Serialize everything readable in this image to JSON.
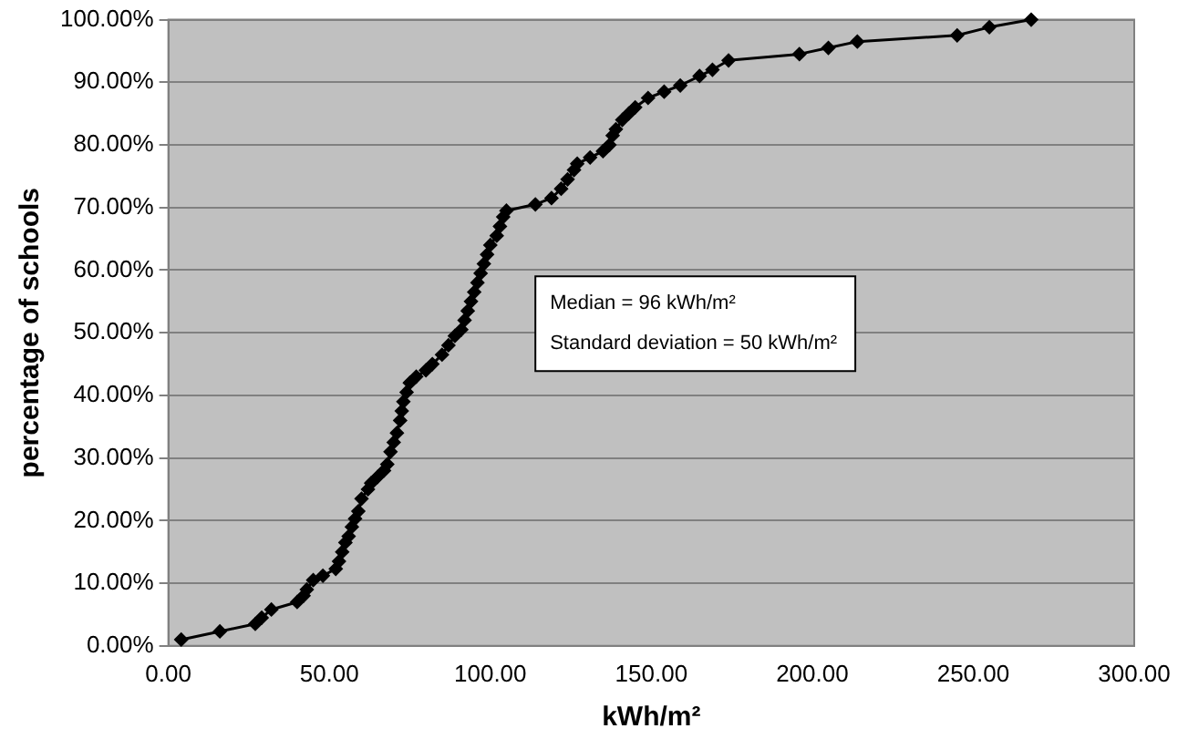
{
  "chart_data": {
    "type": "line",
    "xlabel": "kWh/m²",
    "ylabel": "percentage of schools",
    "x": [
      4,
      16,
      27,
      29,
      32,
      40,
      42,
      43,
      45,
      48,
      52,
      53,
      54,
      55,
      56,
      57,
      58,
      59,
      60,
      62,
      63,
      65,
      67,
      68,
      69,
      70,
      71,
      72,
      72.5,
      73,
      74,
      75,
      77,
      80,
      82,
      85,
      87,
      89,
      91,
      92,
      93,
      94,
      95,
      96,
      97,
      98,
      99,
      100,
      102,
      103,
      104,
      105,
      114,
      119,
      122,
      124,
      126,
      127,
      131,
      135,
      137,
      138,
      139,
      141,
      143,
      145,
      149,
      154,
      159,
      165,
      169,
      174,
      196,
      205,
      214,
      245,
      255,
      268
    ],
    "series": [
      {
        "color": "#000000",
        "values": [
          1,
          2.3,
          3.5,
          4.5,
          5.8,
          7,
          8,
          9,
          10.5,
          11.2,
          12.3,
          13.5,
          15,
          16.5,
          17.5,
          19,
          20.3,
          21.5,
          23.5,
          25,
          26,
          27,
          28,
          29,
          31,
          32.5,
          34,
          36,
          37.5,
          39,
          40.5,
          42,
          43,
          44,
          45,
          46.5,
          48,
          49.5,
          50.5,
          52,
          53.5,
          55,
          56.5,
          58,
          59.5,
          61,
          62.5,
          64,
          65.5,
          67,
          68.5,
          69.5,
          70.5,
          71.5,
          73,
          74.5,
          76,
          77,
          78,
          79,
          80,
          81.5,
          82.5,
          84,
          85,
          86,
          87.5,
          88.5,
          89.5,
          91,
          92,
          93.5,
          94.5,
          95.5,
          96.5,
          97.5,
          98.8,
          100
        ]
      }
    ],
    "xlim": [
      0,
      300
    ],
    "xticks": [
      {
        "value": 0,
        "label": "0.00"
      },
      {
        "value": 50,
        "label": "50.00"
      },
      {
        "value": 100,
        "label": "100.00"
      },
      {
        "value": 150,
        "label": "150.00"
      },
      {
        "value": 200,
        "label": "200.00"
      },
      {
        "value": 250,
        "label": "250.00"
      },
      {
        "value": 300,
        "label": "300.00"
      }
    ],
    "ylim": [
      0,
      100
    ],
    "yticks": [
      {
        "value": 0,
        "label": "0.00%"
      },
      {
        "value": 10,
        "label": "10.00%"
      },
      {
        "value": 20,
        "label": "20.00%"
      },
      {
        "value": 30,
        "label": "30.00%"
      },
      {
        "value": 40,
        "label": "40.00%"
      },
      {
        "value": 50,
        "label": "50.00%"
      },
      {
        "value": 60,
        "label": "60.00%"
      },
      {
        "value": 70,
        "label": "70.00%"
      },
      {
        "value": 80,
        "label": "80.00%"
      },
      {
        "value": 90,
        "label": "90.00%"
      },
      {
        "value": 100,
        "label": "100.00%"
      }
    ],
    "grid": "y",
    "legend": false,
    "marker": "diamond",
    "line_style": "solid",
    "annotations": [
      "Median = 96 kWh/m²",
      "Standard deviation = 50 kWh/m²"
    ]
  }
}
